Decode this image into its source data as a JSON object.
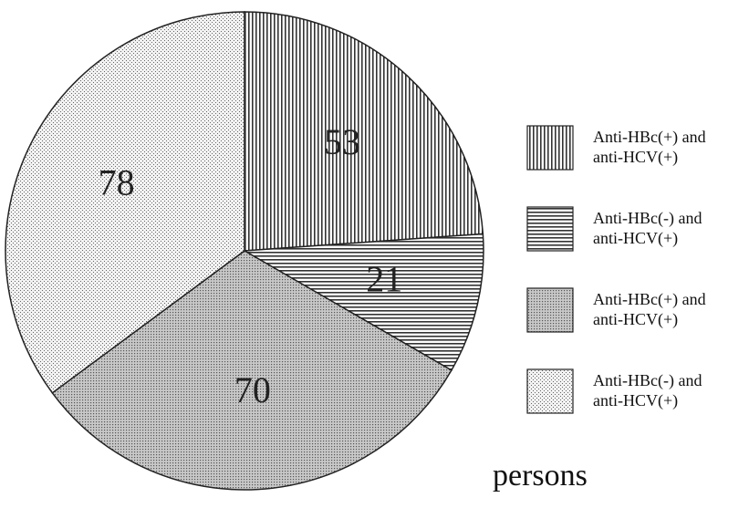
{
  "chart_data": {
    "type": "pie",
    "categories": [
      "Anti-HBc(+) and anti-HCV(+)",
      "Anti-HBc(-) and anti-HCV(+)",
      "Anti-HBc(+) and anti-HCV(+)",
      "Anti-HBc(-) and anti-HCV(+)"
    ],
    "values": [
      53,
      21,
      70,
      78
    ],
    "annotation": "persons",
    "legend": "right"
  }
}
